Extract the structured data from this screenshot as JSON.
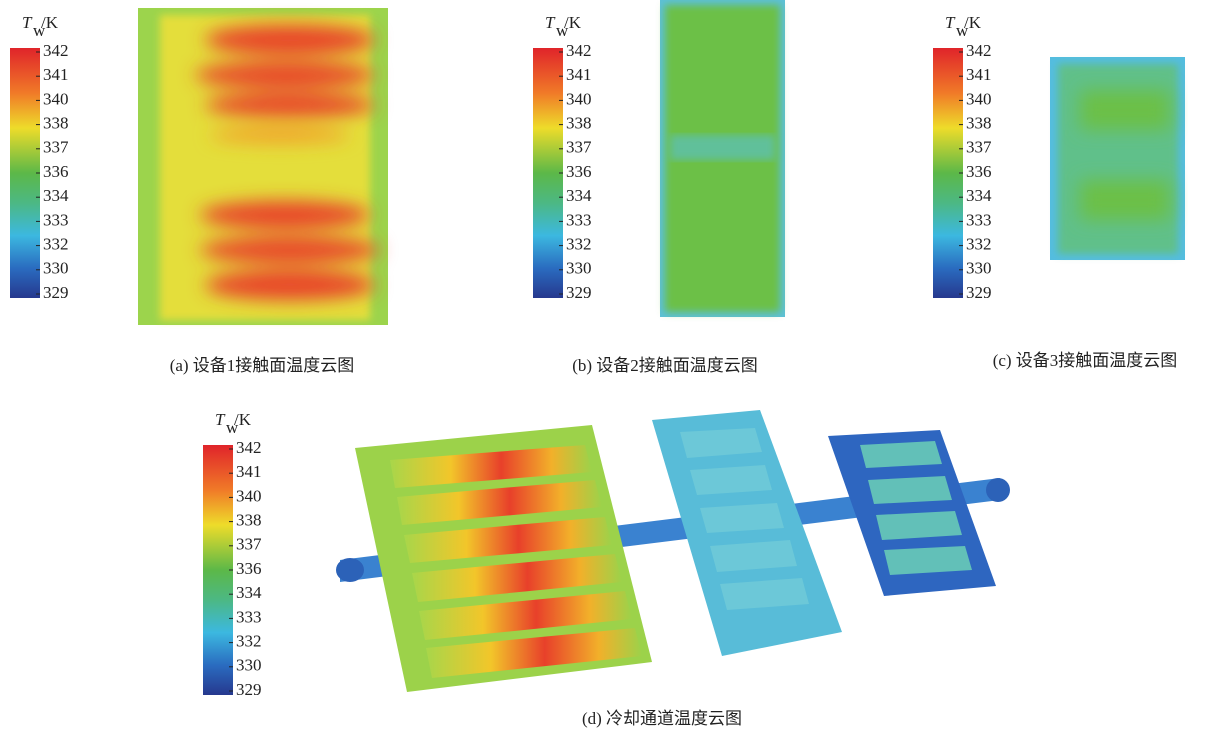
{
  "panels": [
    {
      "colorbar": {
        "symbol": "T",
        "subscript": "w",
        "unit": "/K",
        "ticks": [
          342,
          341,
          340,
          338,
          337,
          336,
          334,
          333,
          332,
          330,
          329
        ]
      },
      "caption": "(a) 设备1接触面温度云图"
    },
    {
      "colorbar": {
        "symbol": "T",
        "subscript": "w",
        "unit": "/K",
        "ticks": [
          342,
          341,
          340,
          338,
          337,
          336,
          334,
          333,
          332,
          330,
          329
        ]
      },
      "caption": "(b) 设备2接触面温度云图"
    },
    {
      "colorbar": {
        "symbol": "T",
        "subscript": "w",
        "unit": "/K",
        "ticks": [
          342,
          341,
          340,
          338,
          337,
          336,
          334,
          333,
          332,
          330,
          329
        ]
      },
      "caption": "(c) 设备3接触面温度云图"
    },
    {
      "colorbar": {
        "symbol": "T",
        "subscript": "w",
        "unit": "/K",
        "ticks": [
          342,
          341,
          340,
          338,
          337,
          336,
          334,
          333,
          332,
          330,
          329
        ]
      },
      "caption": "(d) 冷却通道温度云图"
    }
  ]
}
